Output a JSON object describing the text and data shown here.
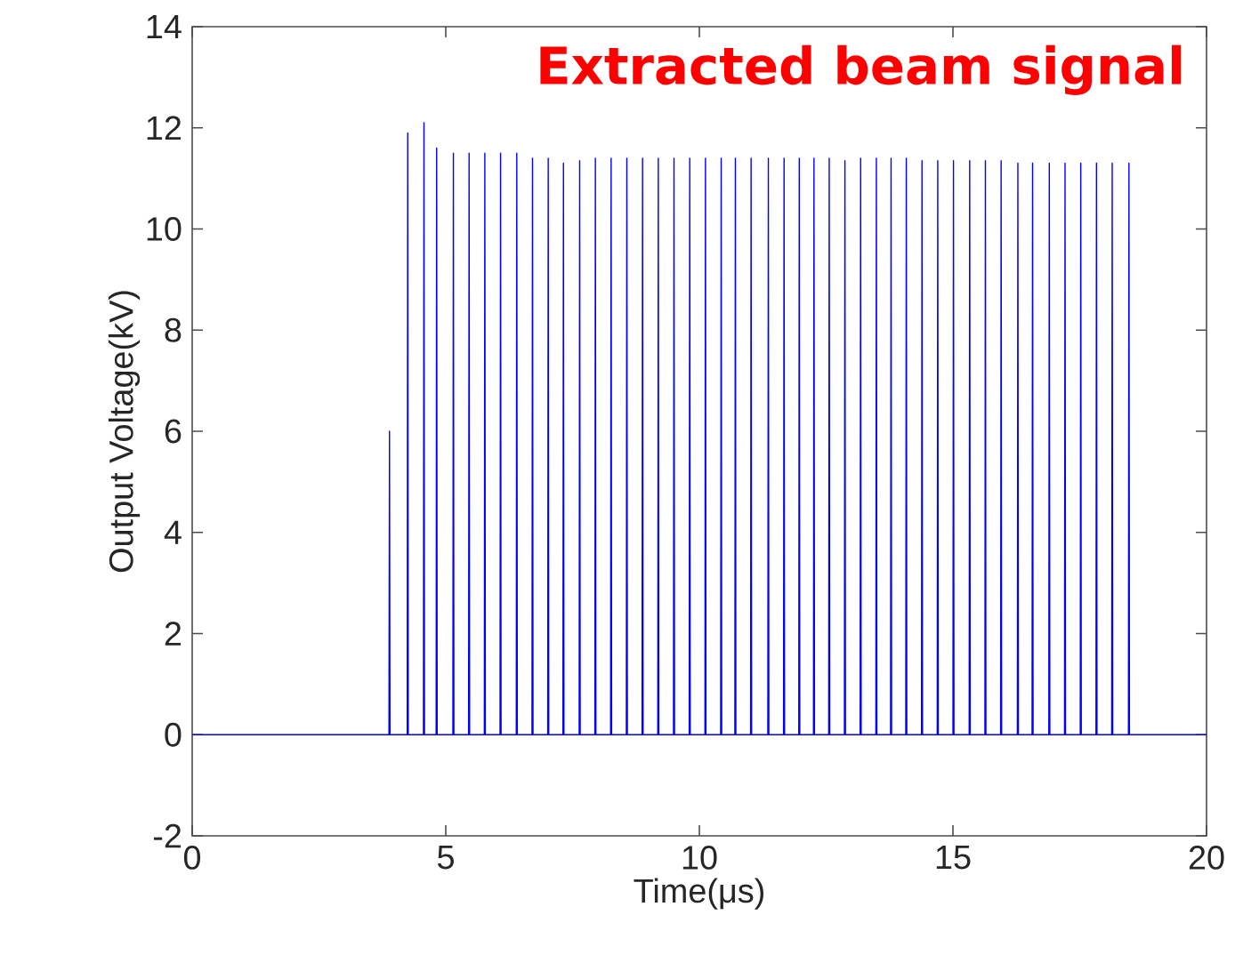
{
  "chart_data": {
    "type": "line",
    "xlabel": "Time(μs)",
    "ylabel": "Output Voltage(kV)",
    "annotations": [
      "Extracted beam signal"
    ],
    "xlim": [
      0,
      20
    ],
    "ylim": [
      -2,
      14
    ],
    "xticks": [
      0,
      5,
      10,
      15,
      20
    ],
    "yticks": [
      -2,
      0,
      2,
      4,
      6,
      8,
      10,
      12,
      14
    ],
    "grid": false,
    "series": [
      {
        "color": "#0000ff",
        "x": [
          0,
          3.88,
          3.89,
          3.9,
          4.24,
          4.25,
          4.26,
          4.56,
          4.57,
          4.58,
          4.81,
          4.82,
          4.83,
          5.14,
          5.15,
          5.16,
          5.45,
          5.46,
          5.47,
          5.76,
          5.77,
          5.78,
          6.07,
          6.08,
          6.09,
          6.39,
          6.4,
          6.41,
          6.7,
          6.71,
          6.72,
          7.01,
          7.02,
          7.03,
          7.31,
          7.32,
          7.33,
          7.63,
          7.64,
          7.65,
          7.94,
          7.95,
          7.96,
          8.25,
          8.26,
          8.27,
          8.56,
          8.57,
          8.58,
          8.87,
          8.88,
          8.89,
          9.18,
          9.19,
          9.2,
          9.49,
          9.5,
          9.51,
          9.8,
          9.81,
          9.82,
          10.11,
          10.12,
          10.13,
          10.42,
          10.43,
          10.44,
          10.7,
          10.71,
          10.72,
          11.01,
          11.02,
          11.03,
          11.35,
          11.36,
          11.37,
          11.66,
          11.67,
          11.68,
          11.96,
          11.97,
          11.98,
          12.25,
          12.26,
          12.27,
          12.55,
          12.56,
          12.57,
          12.86,
          12.87,
          12.88,
          13.17,
          13.18,
          13.19,
          13.48,
          13.49,
          13.5,
          13.77,
          13.78,
          13.79,
          14.07,
          14.08,
          14.09,
          14.38,
          14.39,
          14.4,
          14.69,
          14.7,
          14.71,
          15.0,
          15.01,
          15.02,
          15.32,
          15.33,
          15.34,
          15.63,
          15.64,
          15.65,
          15.94,
          15.95,
          15.96,
          16.27,
          16.28,
          16.29,
          16.56,
          16.57,
          16.58,
          16.89,
          16.9,
          16.91,
          17.2,
          17.21,
          17.22,
          17.51,
          17.52,
          17.53,
          17.82,
          17.83,
          17.84,
          18.13,
          18.14,
          18.15,
          18.46,
          18.47,
          18.48,
          20
        ],
        "values": [
          0,
          0,
          6.0,
          0,
          0,
          11.9,
          0,
          0,
          12.1,
          0,
          0,
          11.6,
          0,
          0,
          11.5,
          0,
          0,
          11.5,
          0,
          0,
          11.5,
          0,
          0,
          11.5,
          0,
          0,
          11.5,
          0,
          0,
          11.4,
          0,
          0,
          11.4,
          0,
          0,
          11.3,
          0,
          0,
          11.35,
          0,
          0,
          11.4,
          0,
          0,
          11.4,
          0,
          0,
          11.4,
          0,
          0,
          11.4,
          0,
          0,
          11.4,
          0,
          0,
          11.4,
          0,
          0,
          11.4,
          0,
          0,
          11.4,
          0,
          0,
          11.4,
          0,
          0,
          11.4,
          0,
          0,
          11.4,
          0,
          0,
          11.4,
          0,
          0,
          11.4,
          0,
          0,
          11.4,
          0,
          0,
          11.4,
          0,
          0,
          11.4,
          0,
          0,
          11.35,
          0,
          0,
          11.4,
          0,
          0,
          11.4,
          0,
          0,
          11.4,
          0,
          0,
          11.4,
          0,
          0,
          11.35,
          0,
          0,
          11.35,
          0,
          0,
          11.35,
          0,
          0,
          11.35,
          0,
          0,
          11.35,
          0,
          0,
          11.35,
          0,
          0,
          11.3,
          0,
          0,
          11.3,
          0,
          0,
          11.3,
          0,
          0,
          11.3,
          0,
          0,
          11.3,
          0,
          0,
          11.3,
          0,
          0,
          11.3,
          0,
          0,
          11.3,
          0,
          0
        ]
      }
    ]
  }
}
